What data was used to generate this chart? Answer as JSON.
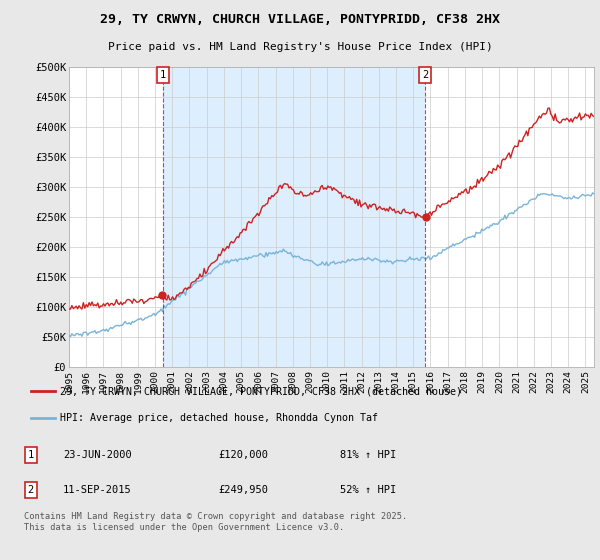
{
  "title_line1": "29, TY CRWYN, CHURCH VILLAGE, PONTYPRIDD, CF38 2HX",
  "title_line2": "Price paid vs. HM Land Registry's House Price Index (HPI)",
  "ylim": [
    0,
    500000
  ],
  "yticks": [
    0,
    50000,
    100000,
    150000,
    200000,
    250000,
    300000,
    350000,
    400000,
    450000,
    500000
  ],
  "ytick_labels": [
    "£0",
    "£50K",
    "£100K",
    "£150K",
    "£200K",
    "£250K",
    "£300K",
    "£350K",
    "£400K",
    "£450K",
    "£500K"
  ],
  "hpi_color": "#7ab4d8",
  "price_color": "#cc2222",
  "vline_color": "#cc2222",
  "background_color": "#e8e8e8",
  "plot_bg_color": "#ffffff",
  "highlight_bg_color": "#ddeeff",
  "grid_color": "#cccccc",
  "legend_label_price": "29, TY CRWYN, CHURCH VILLAGE, PONTYPRIDD, CF38 2HX (detached house)",
  "legend_label_hpi": "HPI: Average price, detached house, Rhondda Cynon Taf",
  "annotation1_num": "1",
  "annotation1_date": "23-JUN-2000",
  "annotation1_price": "£120,000",
  "annotation1_hpi": "81% ↑ HPI",
  "annotation2_num": "2",
  "annotation2_date": "11-SEP-2015",
  "annotation2_price": "£249,950",
  "annotation2_hpi": "52% ↑ HPI",
  "footer": "Contains HM Land Registry data © Crown copyright and database right 2025.\nThis data is licensed under the Open Government Licence v3.0.",
  "year_start": 1995,
  "year_end": 2025,
  "vline1_year": 2000.47,
  "vline2_year": 2015.69,
  "sale1_price": 120000,
  "sale2_price": 249950
}
